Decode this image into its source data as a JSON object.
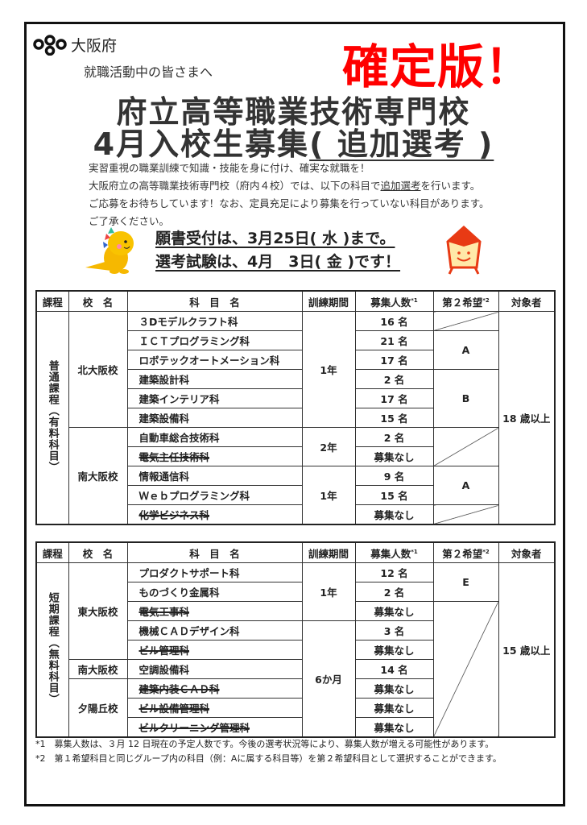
{
  "header": {
    "org": "大阪府",
    "greeting": "就職活動中の皆さまへ",
    "stamp": "確定版！",
    "title_line1": "府立高等職業技術専門校",
    "title_line2_main": "4月入校生募集",
    "title_line2_sub": "( 追加選考 )"
  },
  "intro": {
    "line1": "実習重視の職業訓練で知識・技能を身に付け、確実な就職を！",
    "line2_pre": "大阪府立の高等職業技術専門校（府内４校）では、以下の科目で",
    "line2_u": "追加選考",
    "line2_post": "を行います。",
    "line3": "ご応募をお待ちしています！なお、定員充足により募集を行っていない科目があります。",
    "line4": "ご了承ください。"
  },
  "dates": {
    "application": "願書受付は、3月25日( 水 )まで。",
    "exam": "選考試験は、4月　3日( 金 )です！"
  },
  "columns": [
    "課程",
    "校　名",
    "科　目　名",
    "訓練期間",
    "募集人数",
    "第２希望",
    "対象者"
  ],
  "column_notes": {
    "count": "*1",
    "second": "*2"
  },
  "colors": {
    "stamp": "#ff0000",
    "border": "#111111"
  },
  "tables": [
    {
      "course": "普通課程（有料科目）",
      "target": "18 歳以上",
      "rows": [
        {
          "school": "北大阪校",
          "subject": "３Dモデルクラフト科",
          "struck": false,
          "period": "1年",
          "count": "16 名",
          "second": null
        },
        {
          "school": "北大阪校",
          "subject": "ＩＣＴプログラミング科",
          "struck": false,
          "period": "1年",
          "count": "21 名",
          "second": "A"
        },
        {
          "school": "北大阪校",
          "subject": "ロボテックオートメーション科",
          "struck": false,
          "period": "1年",
          "count": "17 名",
          "second": "A"
        },
        {
          "school": "北大阪校",
          "subject": "建築設計科",
          "struck": false,
          "period": "1年",
          "count": "2 名",
          "second": "B"
        },
        {
          "school": "北大阪校",
          "subject": "建築インテリア科",
          "struck": false,
          "period": "1年",
          "count": "17 名",
          "second": "B"
        },
        {
          "school": "北大阪校",
          "subject": "建築設備科",
          "struck": false,
          "period": "1年",
          "count": "15 名",
          "second": "B"
        },
        {
          "school": "南大阪校",
          "subject": "自動車総合技術科",
          "struck": false,
          "period": "2年",
          "count": "2 名",
          "second": null
        },
        {
          "school": "南大阪校",
          "subject": "電気主任技術科",
          "struck": true,
          "period": "2年",
          "count": "募集なし",
          "second": null
        },
        {
          "school": "南大阪校",
          "subject": "情報通信科",
          "struck": false,
          "period": "1年 ",
          "count": "9 名",
          "second": "A"
        },
        {
          "school": "南大阪校",
          "subject": "Ｗｅｂプログラミング科",
          "struck": false,
          "period": "1年 ",
          "count": "15 名",
          "second": "A"
        },
        {
          "school": "南大阪校",
          "subject": "化学ビジネス科",
          "struck": true,
          "period": "1年 ",
          "count": "募集なし",
          "second": ""
        }
      ]
    },
    {
      "course": "短期課程（無料科目）",
      "target": "15 歳以上",
      "rows": [
        {
          "school": "東大阪校",
          "subject": "プロダクトサポート科",
          "struck": false,
          "period": "1年",
          "count": "12 名",
          "second": "E"
        },
        {
          "school": "東大阪校",
          "subject": "ものづくり金属科",
          "struck": false,
          "period": "1年",
          "count": "2 名",
          "second": "E"
        },
        {
          "school": "東大阪校",
          "subject": "電気工事科",
          "struck": true,
          "period": "1年",
          "count": "募集なし",
          "second": null
        },
        {
          "school": "東大阪校",
          "subject": "機械ＣＡＤデザイン科",
          "struck": false,
          "period": "6か月",
          "count": "3 名",
          "second": null
        },
        {
          "school": "東大阪校",
          "subject": "ビル管理科",
          "struck": true,
          "period": "6か月",
          "count": "募集なし",
          "second": null
        },
        {
          "school": "南大阪校",
          "subject": "空調設備科",
          "struck": false,
          "period": "6か月",
          "count": "14 名",
          "second": null
        },
        {
          "school": "夕陽丘校",
          "subject": "建築内装ＣＡＤ科",
          "struck": true,
          "period": "6か月",
          "count": "募集なし",
          "second": null
        },
        {
          "school": "夕陽丘校",
          "subject": "ビル設備管理科",
          "struck": true,
          "period": "6か月",
          "count": "募集なし",
          "second": null
        },
        {
          "school": "夕陽丘校",
          "subject": "ビルクリーニング管理科",
          "struck": true,
          "period": "6か月",
          "count": "募集なし",
          "second": null
        }
      ]
    }
  ],
  "footnotes": [
    {
      "mark": "*1",
      "text": "募集人数は、３月 12 日現在の予定人数です。今後の選考状況等により、募集人数が増える可能性があります。"
    },
    {
      "mark": "*2",
      "text": "第１希望科目と同じグループ内の科目（例：Aに属する科目等）を第２希望科目として選択することができます。"
    }
  ]
}
